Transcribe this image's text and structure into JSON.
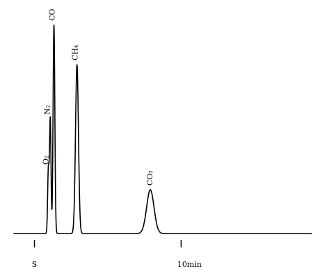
{
  "chart_data": {
    "type": "line",
    "title": "",
    "xlabel": "",
    "ylabel": "",
    "grid": false,
    "legend": "none",
    "x_range": [
      -1.4,
      18.9
    ],
    "y_range": [
      0,
      100
    ],
    "x_ticks": [
      {
        "x": 0,
        "label": "S"
      },
      {
        "x": 10,
        "label": "10min"
      }
    ],
    "peaks": [
      {
        "name": "O₂",
        "x": 0.95,
        "height": 31,
        "width": 0.05
      },
      {
        "name": "N₂",
        "x": 1.08,
        "height": 55,
        "width": 0.05
      },
      {
        "name": "CO",
        "x": 1.33,
        "height": 100,
        "width": 0.06
      },
      {
        "name": "CH₄",
        "x": 2.9,
        "height": 81,
        "width": 0.1
      },
      {
        "name": "CO₂",
        "x": 7.9,
        "height": 21,
        "width": 0.25
      }
    ]
  }
}
